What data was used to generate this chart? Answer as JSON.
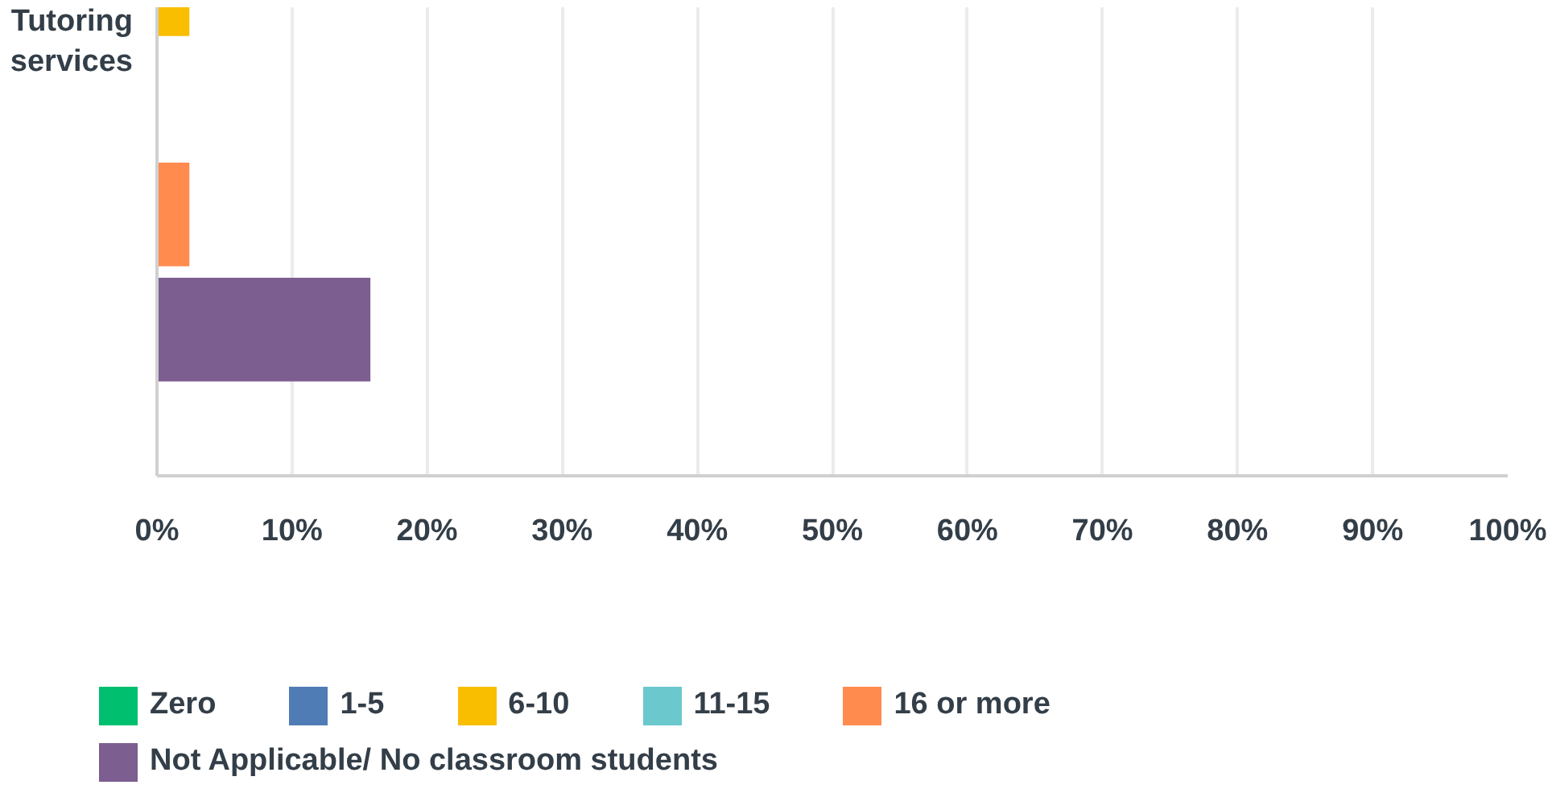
{
  "chart_data": {
    "type": "bar",
    "orientation": "horizontal",
    "categories": [
      "Tutoring services"
    ],
    "series": [
      {
        "name": "Zero",
        "color": "#00bf6f",
        "values": [
          null
        ]
      },
      {
        "name": "1-5",
        "color": "#507cb6",
        "values": [
          null
        ]
      },
      {
        "name": "6-10",
        "color": "#f9be00",
        "values": [
          2.4
        ]
      },
      {
        "name": "11-15",
        "color": "#6bc8cd",
        "values": [
          0
        ]
      },
      {
        "name": "16 or more",
        "color": "#ff8b4f",
        "values": [
          2.4
        ]
      },
      {
        "name": "Not Applicable/ No classroom students",
        "color": "#7d5e90",
        "values": [
          15.8
        ]
      }
    ],
    "xlim": [
      0,
      100
    ],
    "xticks": [
      {
        "value": 0,
        "label": "0%"
      },
      {
        "value": 10,
        "label": "10%"
      },
      {
        "value": 20,
        "label": "20%"
      },
      {
        "value": 30,
        "label": "30%"
      },
      {
        "value": 40,
        "label": "40%"
      },
      {
        "value": 50,
        "label": "50%"
      },
      {
        "value": 60,
        "label": "60%"
      },
      {
        "value": 70,
        "label": "70%"
      },
      {
        "value": 80,
        "label": "80%"
      },
      {
        "value": 90,
        "label": "90%"
      },
      {
        "value": 100,
        "label": "100%"
      }
    ],
    "grid": "x",
    "legend": "bottom"
  }
}
